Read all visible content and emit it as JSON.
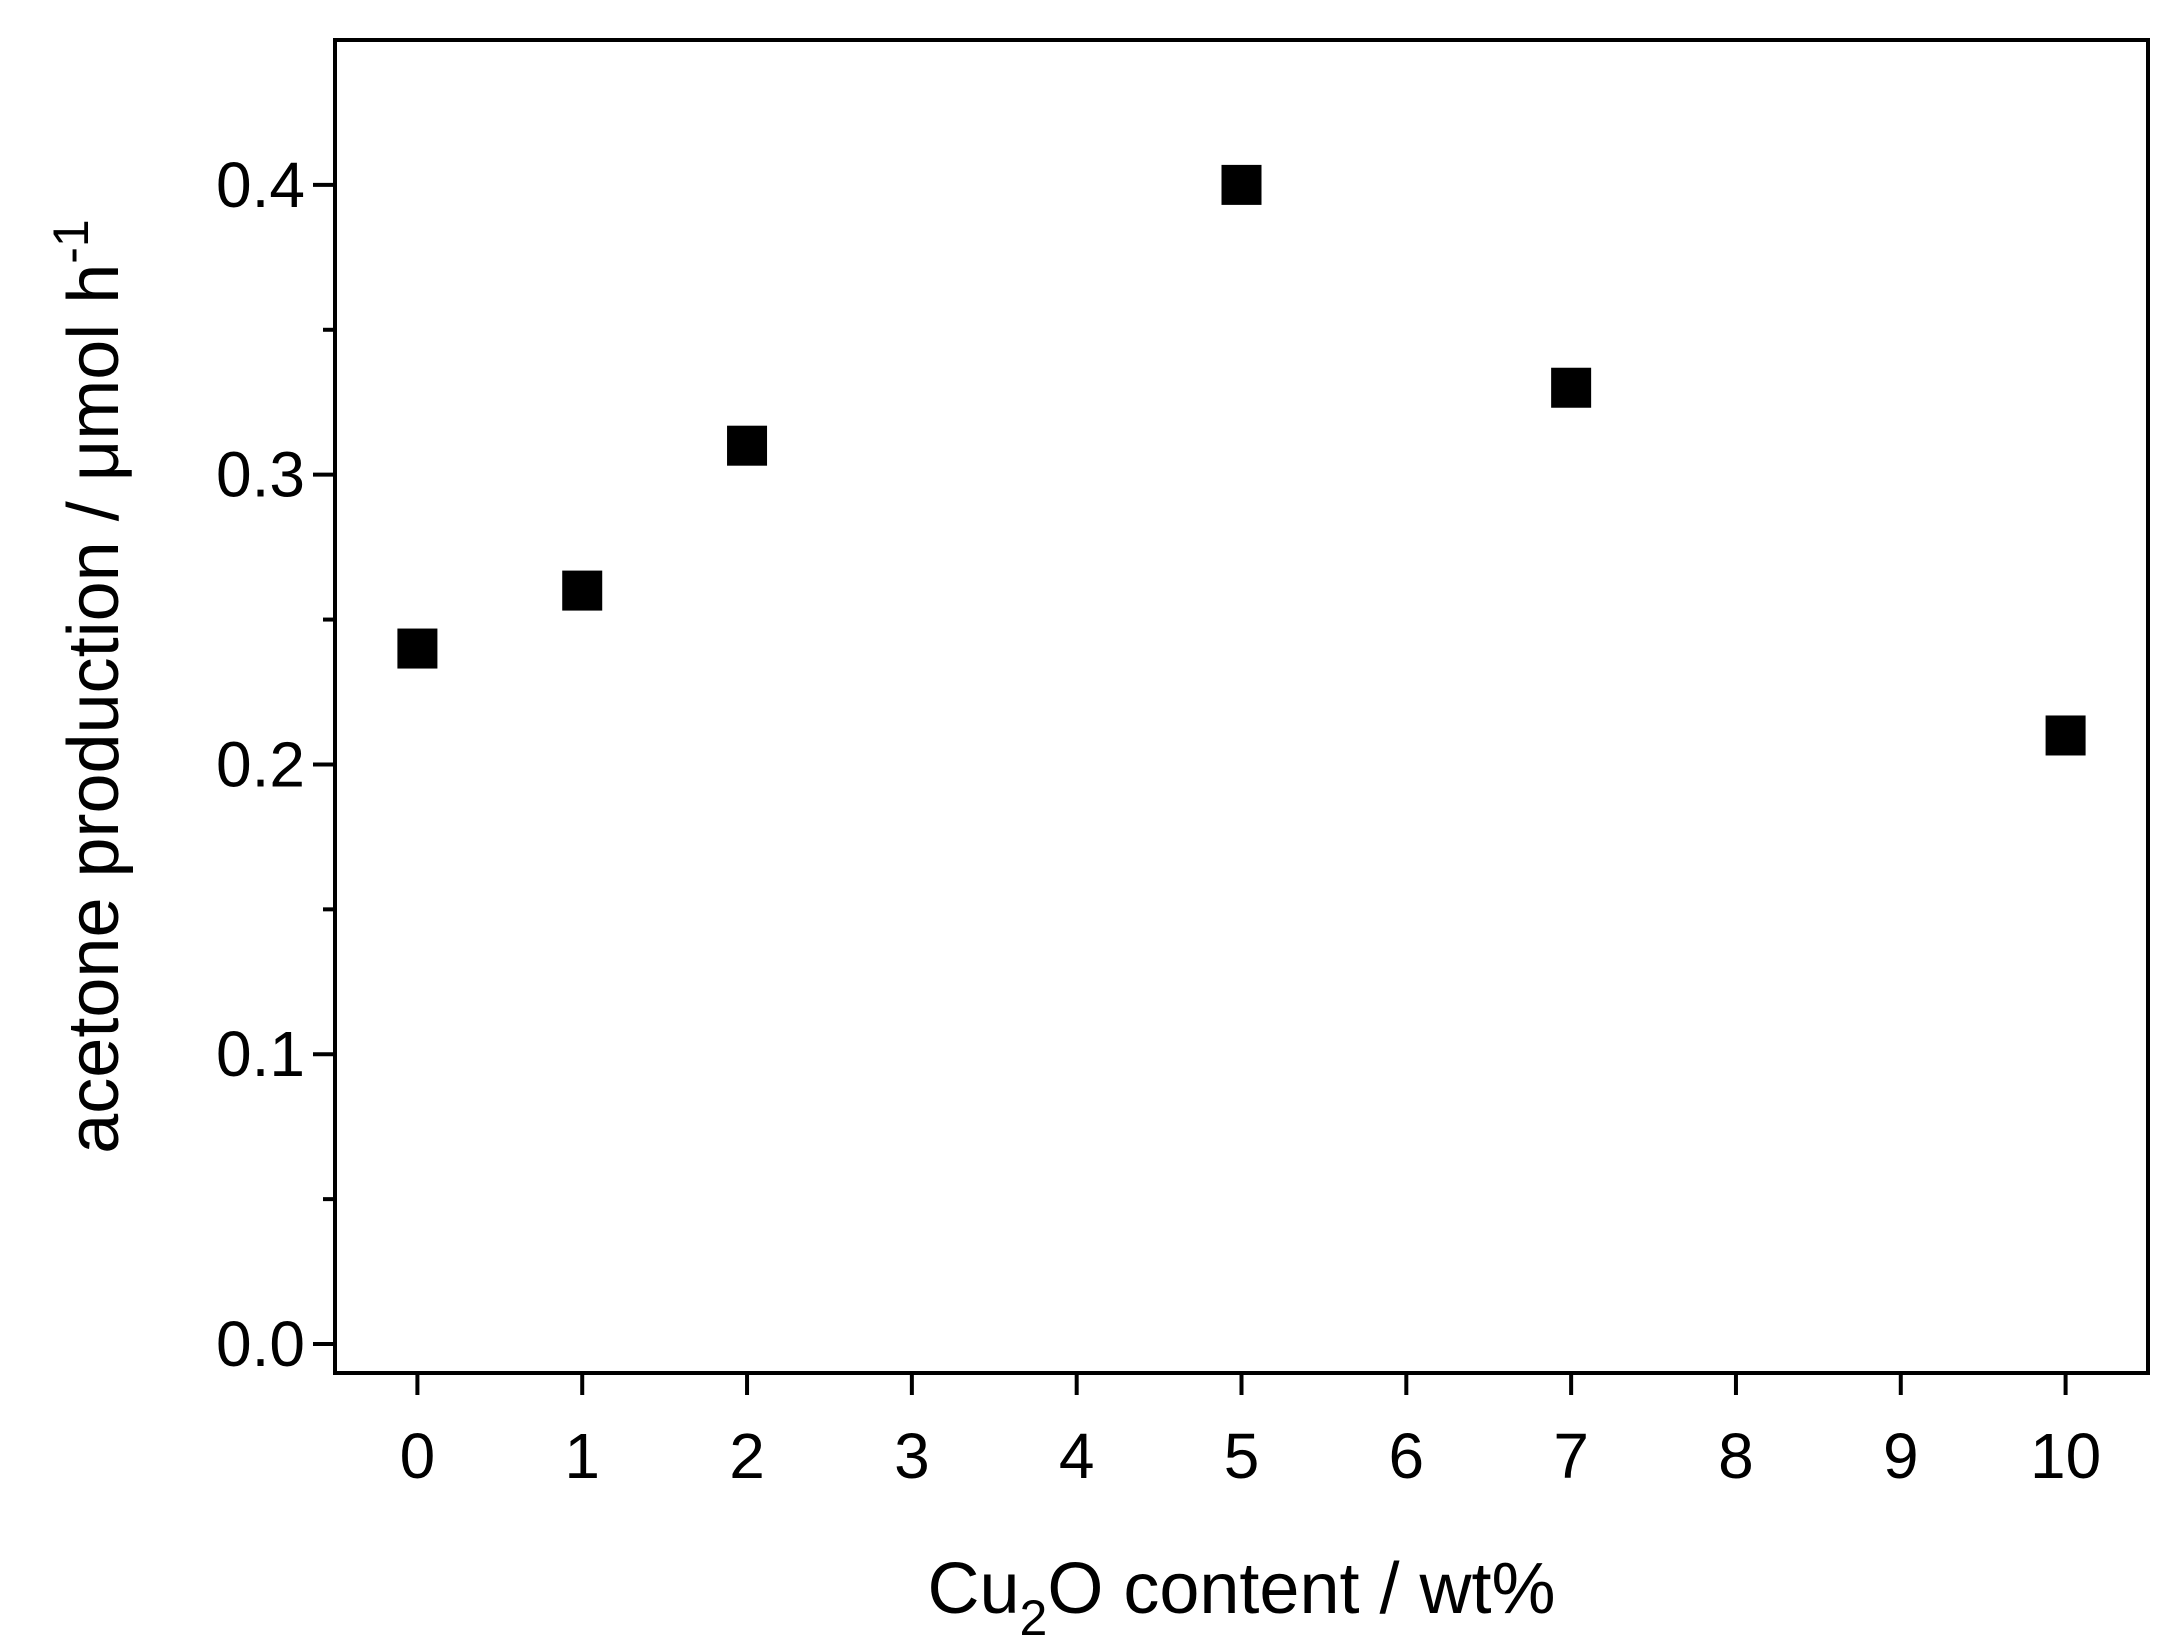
{
  "chart_data": {
    "type": "scatter",
    "title": "",
    "xlabel": {
      "prefix": "Cu",
      "subscript": "2",
      "suffix": "O content / wt%"
    },
    "ylabel": {
      "main": "acetone production / μmol h",
      "superscript": "-1"
    },
    "x_ticks": [
      0,
      1,
      2,
      3,
      4,
      5,
      6,
      7,
      8,
      9,
      10
    ],
    "x_tick_labels": [
      "0",
      "1",
      "2",
      "3",
      "4",
      "5",
      "6",
      "7",
      "8",
      "9",
      "10"
    ],
    "y_ticks": [
      0.0,
      0.1,
      0.2,
      0.3,
      0.4
    ],
    "y_tick_labels": [
      "0.0",
      "0.1",
      "0.2",
      "0.3",
      "0.4"
    ],
    "y_minor_ticks": [
      0.05,
      0.15,
      0.25,
      0.35
    ],
    "xlim": [
      -0.5,
      10.5
    ],
    "ylim": [
      -0.01,
      0.45
    ],
    "grid": false,
    "series": [
      {
        "marker": "square",
        "color": "#000000",
        "x": [
          0,
          1,
          2,
          5,
          7,
          10
        ],
        "y": [
          0.24,
          0.26,
          0.31,
          0.4,
          0.33,
          0.21
        ]
      }
    ]
  }
}
